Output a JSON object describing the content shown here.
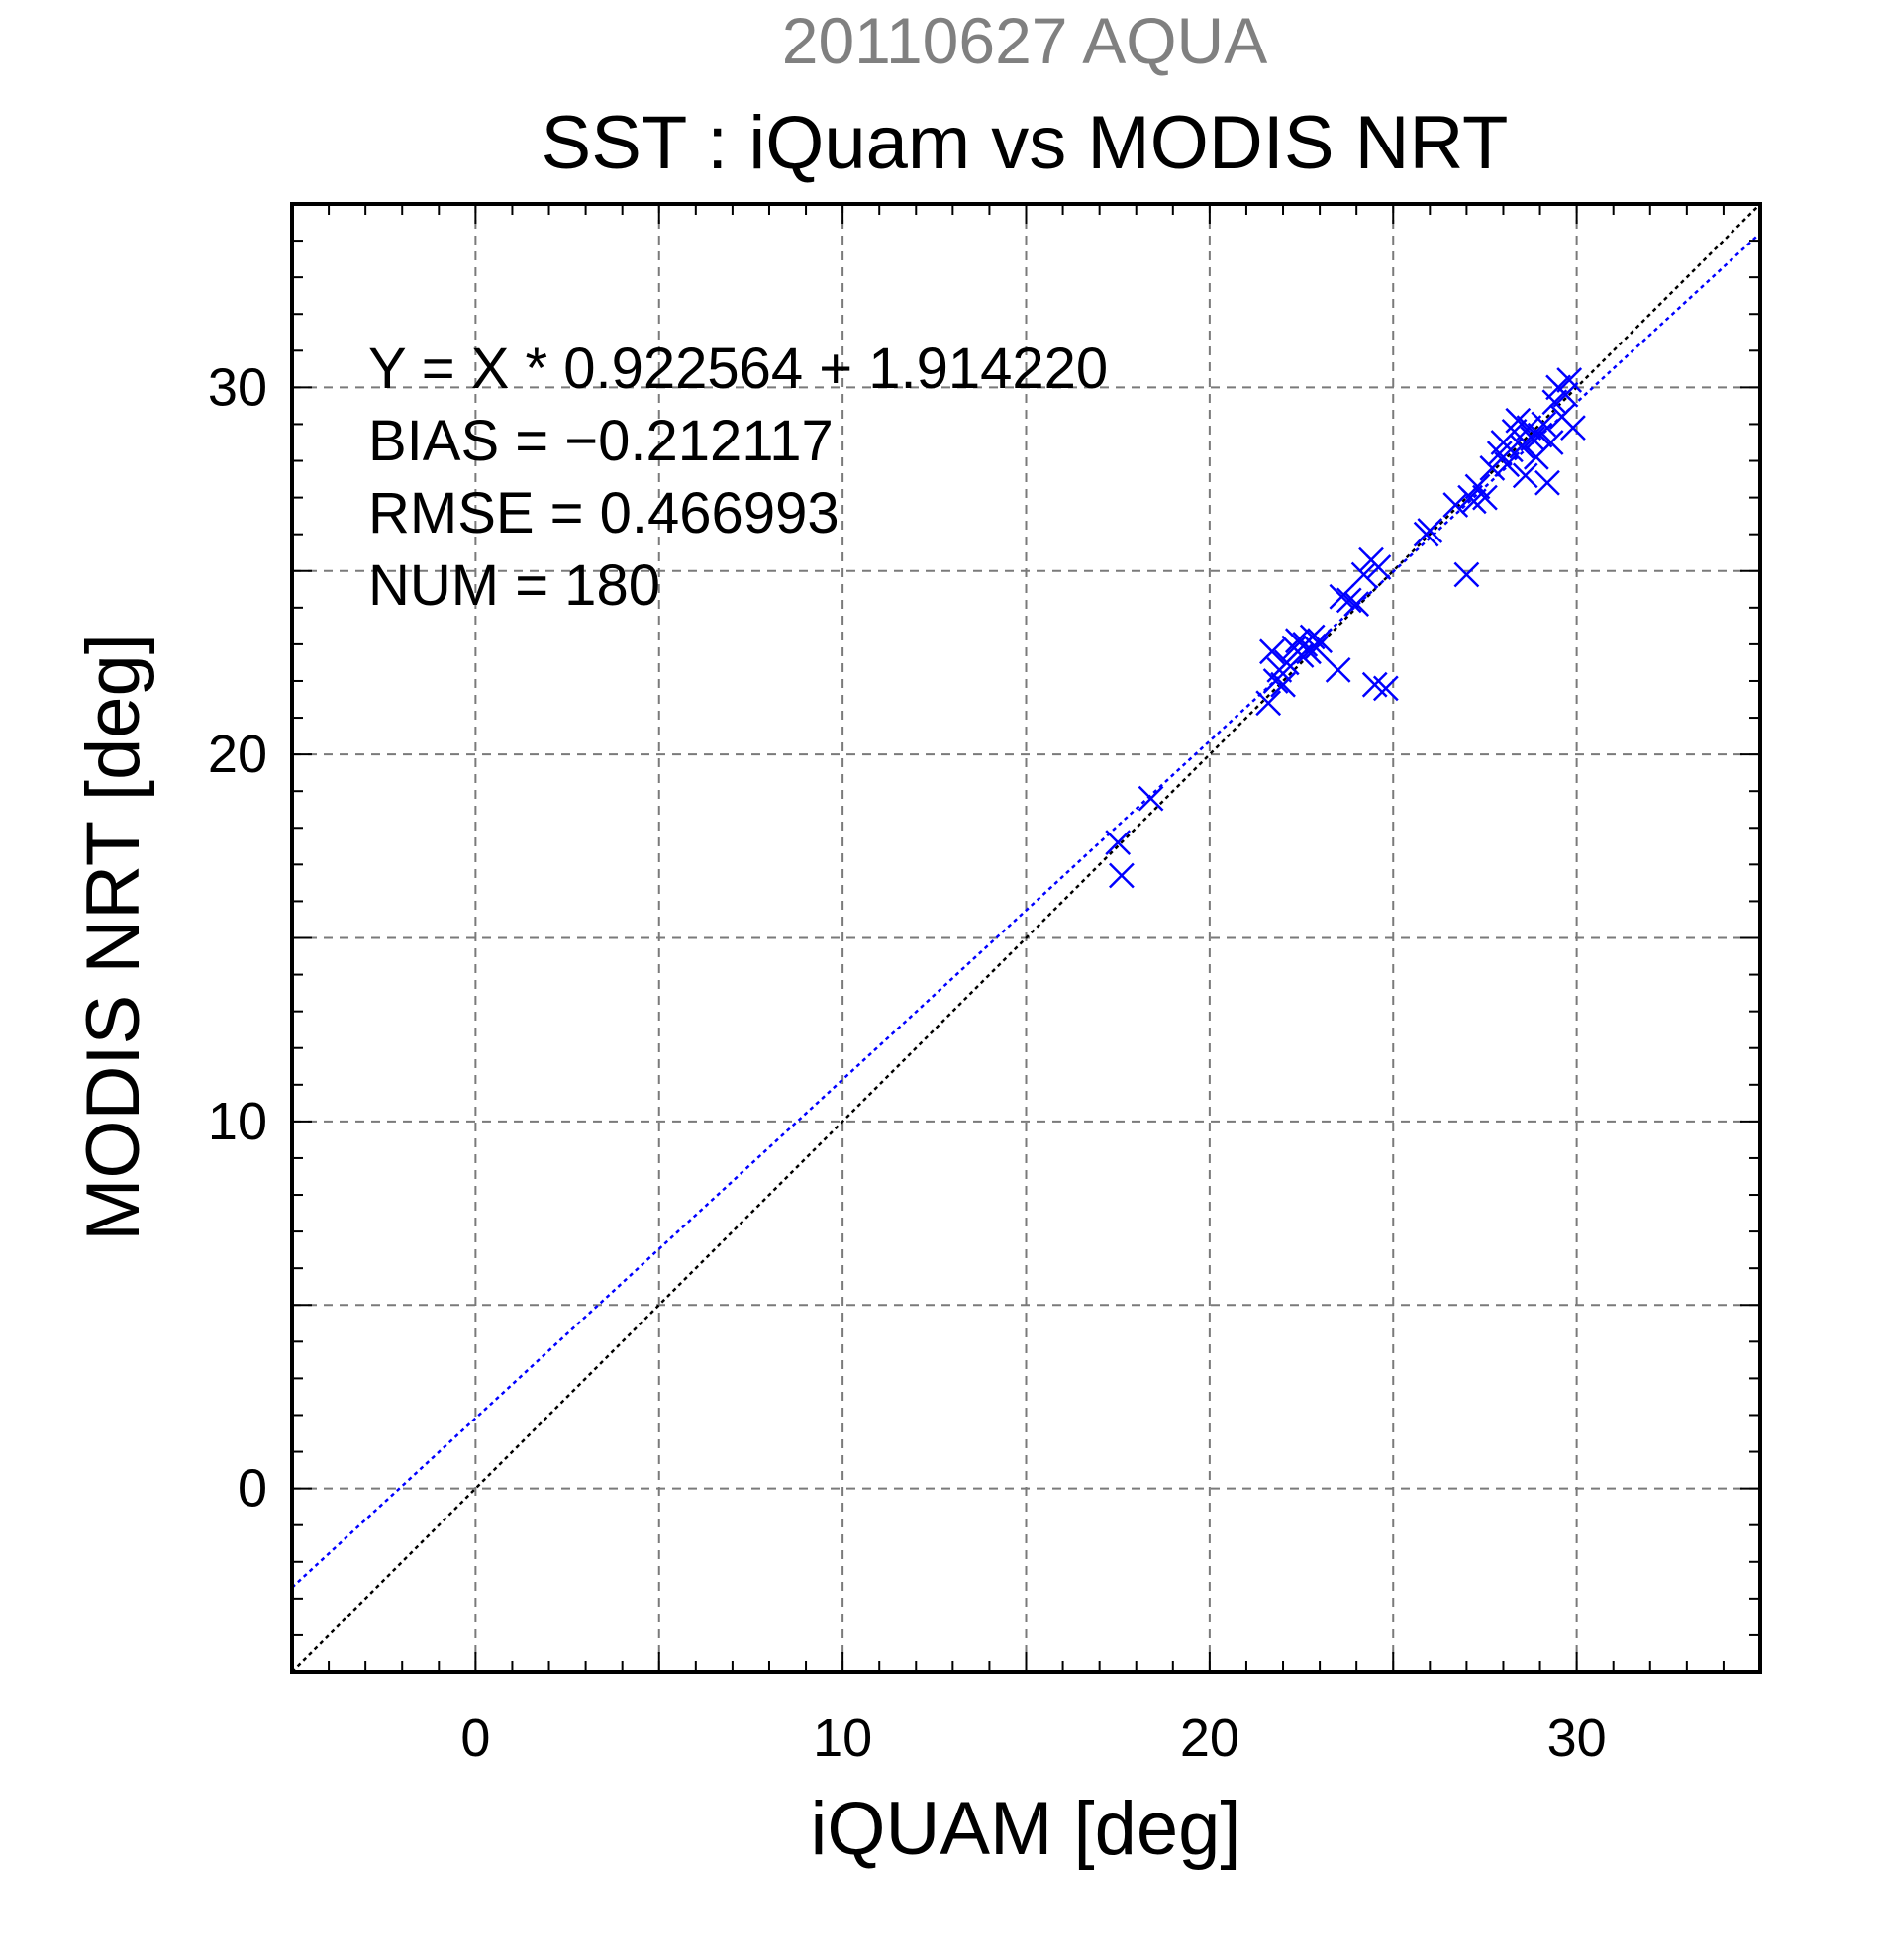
{
  "chart_data": {
    "type": "scatter",
    "title": "20110627 AQUA",
    "subtitle": "SST : iQuam vs MODIS NRT",
    "xlabel": "iQUAM [deg]",
    "ylabel": "MODIS NRT [deg]",
    "xlim": [
      -5,
      35
    ],
    "ylim": [
      -5,
      35
    ],
    "xticks": [
      0,
      10,
      20,
      30
    ],
    "yticks": [
      0,
      10,
      20,
      30
    ],
    "xtick_labels": [
      "0",
      "10",
      "20",
      "30"
    ],
    "ytick_labels": [
      "0",
      "10",
      "20",
      "30"
    ],
    "grid": true,
    "annotations": [
      "Y = X * 0.922564 + 1.914220",
      "BIAS = −0.212117",
      "RMSE = 0.466993",
      "NUM = 180"
    ],
    "series": [
      {
        "marker": "x",
        "color": "#0000ff",
        "x": [
          17.5,
          17.6,
          18.4,
          21.6,
          21.7,
          21.8,
          21.9,
          22.0,
          22.1,
          22.3,
          22.4,
          22.5,
          22.6,
          22.7,
          22.8,
          22.9,
          23.0,
          23.5,
          23.6,
          23.8,
          24.0,
          24.2,
          24.4,
          24.5,
          24.6,
          24.8,
          25.9,
          26.0,
          26.7,
          27.0,
          27.1,
          27.2,
          27.3,
          27.5,
          27.7,
          27.9,
          28.0,
          28.1,
          28.2,
          28.3,
          28.4,
          28.5,
          28.6,
          28.7,
          28.8,
          28.9,
          29.0,
          29.1,
          29.2,
          29.3,
          29.4,
          29.5,
          29.6,
          29.7,
          29.8,
          29.9
        ],
        "y": [
          17.6,
          16.7,
          18.8,
          21.4,
          22.8,
          22.0,
          22.3,
          21.9,
          22.5,
          22.9,
          23.1,
          22.7,
          23.0,
          22.8,
          23.2,
          22.9,
          23.1,
          22.3,
          24.3,
          24.2,
          24.1,
          24.9,
          25.3,
          21.9,
          25.1,
          21.8,
          26.0,
          26.1,
          26.8,
          24.9,
          27.0,
          26.9,
          27.3,
          27.0,
          27.8,
          28.2,
          28.5,
          27.9,
          28.3,
          28.8,
          29.1,
          28.4,
          27.6,
          28.9,
          28.6,
          28.1,
          28.7,
          29.0,
          27.4,
          28.5,
          29.6,
          30.0,
          29.2,
          29.8,
          30.2,
          28.9
        ]
      }
    ],
    "lines": [
      {
        "name": "1:1",
        "slope": 1.0,
        "intercept": 0.0,
        "color": "#000000",
        "style": "dotted"
      },
      {
        "name": "fit",
        "slope": 0.922564,
        "intercept": 1.91422,
        "color": "#0000ff",
        "style": "dotted"
      }
    ]
  }
}
